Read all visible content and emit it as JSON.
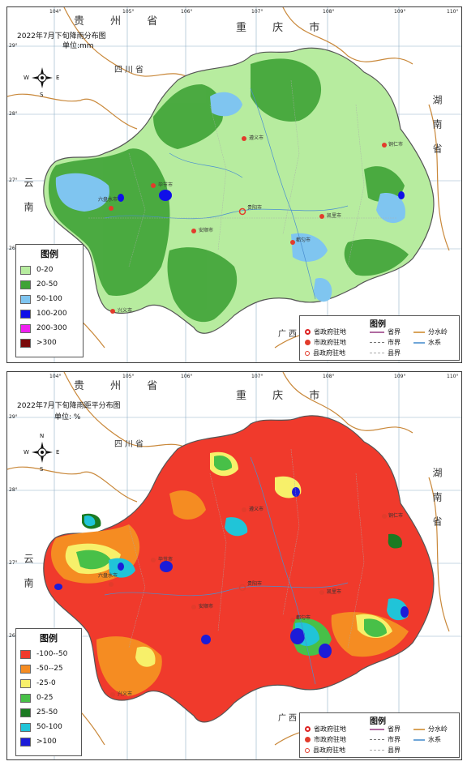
{
  "top_map": {
    "title": "2022年7月下旬降雨分布图",
    "unit": "单位:mm",
    "regions": {
      "guizhou": "贵 州 省",
      "chongqing": "重 庆 市",
      "sichuan": "四川省",
      "yunnan": "云南",
      "guangxi": "广西",
      "hunan": "湖南省"
    },
    "lon_ticks": [
      "104°",
      "105°",
      "106°",
      "107°",
      "108°",
      "109°",
      "110°"
    ],
    "lat_ticks": [
      "29°",
      "28°",
      "27°",
      "26°"
    ],
    "legend": {
      "title": "图例",
      "items": [
        {
          "label": "0-20",
          "color": "#b7ec9f"
        },
        {
          "label": "20-50",
          "color": "#3fa336"
        },
        {
          "label": "50-100",
          "color": "#7fc5f0"
        },
        {
          "label": "100-200",
          "color": "#1010e8"
        },
        {
          "label": "200-300",
          "color": "#f020f0"
        },
        {
          "label": ">300",
          "color": "#7a0a0a"
        }
      ]
    }
  },
  "bottom_map": {
    "title": "2022年7月下旬降雨距平分布图",
    "unit": "单位: %",
    "regions": {
      "guizhou": "贵 州 省",
      "chongqing": "重 庆 市",
      "sichuan": "四川省",
      "yunnan": "云南",
      "guangxi": "广西",
      "hunan": "湖南省"
    },
    "lon_ticks": [
      "104°",
      "105°",
      "106°",
      "107°",
      "108°",
      "109°",
      "110°"
    ],
    "lat_ticks": [
      "29°",
      "28°",
      "27°",
      "26°"
    ],
    "legend": {
      "title": "图例",
      "items": [
        {
          "label": "-100--50",
          "color": "#f03a2c"
        },
        {
          "label": "-50--25",
          "color": "#f58c22"
        },
        {
          "label": "-25-0",
          "color": "#f7f06a"
        },
        {
          "label": "0-25",
          "color": "#48c048"
        },
        {
          "label": "25-50",
          "color": "#1b7a22"
        },
        {
          "label": "50-100",
          "color": "#20c4d8"
        },
        {
          "label": ">100",
          "color": "#1c1cd8"
        }
      ]
    }
  },
  "symbol_legend": {
    "title": "图例",
    "items": [
      "省政府驻地",
      "省界",
      "分水岭",
      "市政府驻地",
      "市界",
      "水系",
      "县政府驻地",
      "县界"
    ]
  },
  "compass": {
    "n": "N",
    "s": "S",
    "e": "E",
    "w": "W"
  },
  "cities": [
    "遵义市",
    "贵阳市",
    "安顺市",
    "毕节市",
    "六盘水市",
    "都匀市",
    "凯里市",
    "铜仁市",
    "兴义市"
  ]
}
